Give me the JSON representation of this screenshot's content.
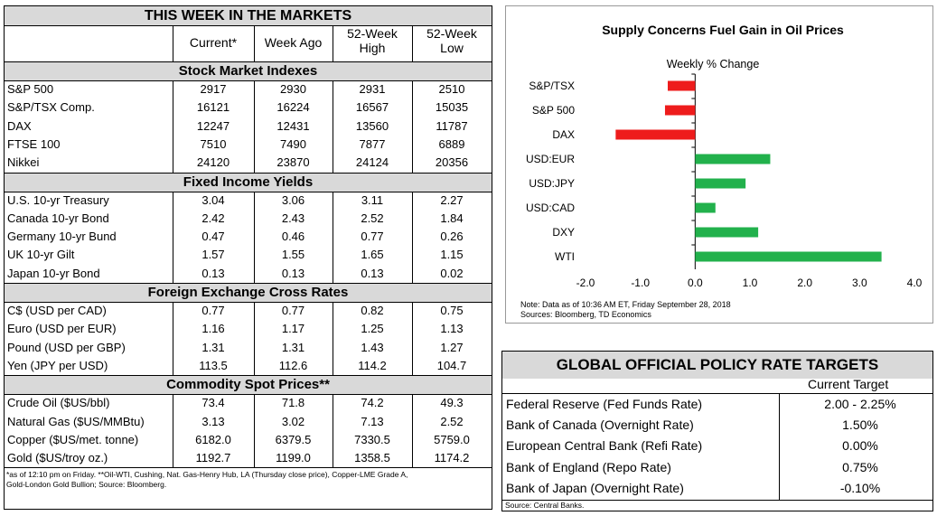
{
  "markets": {
    "title": "THIS WEEK IN THE MARKETS",
    "columns": [
      "Current*",
      "Week Ago",
      "52-Week High",
      "52-Week Low"
    ],
    "col_lines": [
      [
        "Current*"
      ],
      [
        "Week Ago"
      ],
      [
        "52-Week",
        "High"
      ],
      [
        "52-Week",
        "Low"
      ]
    ],
    "sections": [
      {
        "title": "Stock Market Indexes",
        "rows": [
          [
            "S&P 500",
            "2917",
            "2930",
            "2931",
            "2510"
          ],
          [
            "S&P/TSX Comp.",
            "16121",
            "16224",
            "16567",
            "15035"
          ],
          [
            "DAX",
            "12247",
            "12431",
            "13560",
            "11787"
          ],
          [
            "FTSE 100",
            "7510",
            "7490",
            "7877",
            "6889"
          ],
          [
            "Nikkei",
            "24120",
            "23870",
            "24124",
            "20356"
          ]
        ]
      },
      {
        "title": "Fixed Income Yields",
        "rows": [
          [
            "U.S. 10-yr Treasury",
            "3.04",
            "3.06",
            "3.11",
            "2.27"
          ],
          [
            "Canada 10-yr Bond",
            "2.42",
            "2.43",
            "2.52",
            "1.84"
          ],
          [
            "Germany 10-yr Bund",
            "0.47",
            "0.46",
            "0.77",
            "0.26"
          ],
          [
            "UK 10-yr Gilt",
            "1.57",
            "1.55",
            "1.65",
            "1.15"
          ],
          [
            "Japan 10-yr Bond",
            "0.13",
            "0.13",
            "0.13",
            "0.02"
          ]
        ]
      },
      {
        "title": "Foreign Exchange Cross Rates",
        "rows": [
          [
            "C$ (USD per CAD)",
            "0.77",
            "0.77",
            "0.82",
            "0.75"
          ],
          [
            "Euro (USD per EUR)",
            "1.16",
            "1.17",
            "1.25",
            "1.13"
          ],
          [
            "Pound (USD per GBP)",
            "1.31",
            "1.31",
            "1.43",
            "1.27"
          ],
          [
            "Yen (JPY per USD)",
            "113.5",
            "112.6",
            "114.2",
            "104.7"
          ]
        ]
      },
      {
        "title": "Commodity Spot Prices**",
        "rows": [
          [
            "Crude Oil ($US/bbl)",
            "73.4",
            "71.8",
            "74.2",
            "49.3"
          ],
          [
            "Natural Gas ($US/MMBtu)",
            "3.13",
            "3.02",
            "7.13",
            "2.52"
          ],
          [
            "Copper ($US/met. tonne)",
            "6182.0",
            "6379.5",
            "7330.5",
            "5759.0"
          ],
          [
            "Gold ($US/troy oz.)",
            "1192.7",
            "1199.0",
            "1358.5",
            "1174.2"
          ]
        ]
      }
    ],
    "footnote_lines": [
      "*as of 12:10 pm on Friday. **Oil-WTI, Cushing, Nat. Gas-Henry Hub, LA (Thursday close price), Copper-LME Grade A,",
      "Gold-London Gold Bullion; Source: Bloomberg."
    ]
  },
  "chart_data": {
    "type": "bar",
    "orientation": "horizontal",
    "title": "Supply Concerns Fuel Gain in Oil Prices",
    "subtitle": "Weekly % Change",
    "categories": [
      "S&P/TSX",
      "S&P 500",
      "DAX",
      "USD:EUR",
      "USD:JPY",
      "USD:CAD",
      "DXY",
      "WTI"
    ],
    "values": [
      -0.5,
      -0.55,
      -1.45,
      1.37,
      0.92,
      0.37,
      1.15,
      3.4
    ],
    "xlim": [
      -2.0,
      4.0
    ],
    "xticks": [
      "-2.0",
      "-1.0",
      "0.0",
      "1.0",
      "2.0",
      "3.0",
      "4.0"
    ],
    "colors": {
      "negative": "#ee1c1c",
      "positive": "#22b14c"
    },
    "note_lines": [
      "Note: Data as of  10:36 AM  ET,  Friday September 28, 2018",
      "Sources: Bloomberg, TD Economics"
    ]
  },
  "policy": {
    "title": "GLOBAL OFFICIAL POLICY RATE TARGETS",
    "column": "Current Target",
    "rows": [
      [
        "Federal Reserve (Fed Funds Rate)",
        "2.00 - 2.25%"
      ],
      [
        "Bank of Canada (Overnight Rate)",
        "1.50%"
      ],
      [
        "European Central Bank (Refi Rate)",
        "0.00%"
      ],
      [
        "Bank of England (Repo Rate)",
        "0.75%"
      ],
      [
        "Bank of Japan (Overnight Rate)",
        "-0.10%"
      ]
    ],
    "source": "Source: Central Banks."
  }
}
